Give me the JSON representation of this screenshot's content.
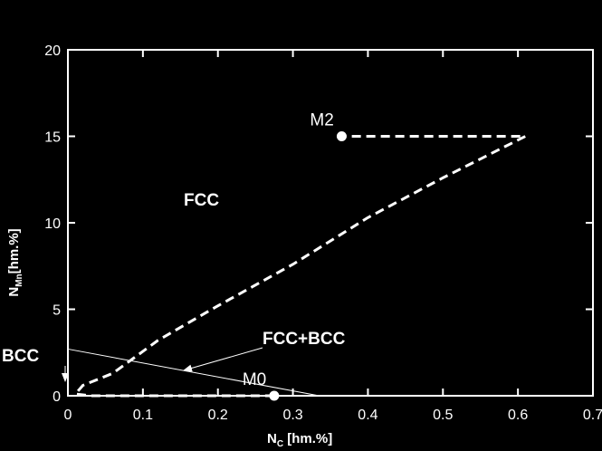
{
  "chart_data": {
    "type": "line",
    "xlabel_main": "N",
    "xlabel_sub": "C",
    "xlabel_unit": " [hm.%]",
    "ylabel_main": "N",
    "ylabel_sub": "Mn",
    "ylabel_unit": "[hm.%]",
    "xlim": [
      0,
      0.7
    ],
    "ylim": [
      0,
      20
    ],
    "xticks": [
      0,
      0.1,
      0.2,
      0.3,
      0.4,
      0.5,
      0.6,
      0.7
    ],
    "xtick_labels": [
      "0",
      "0.1",
      "0.2",
      "0.3",
      "0.4",
      "0.5",
      "0.6",
      "0.7"
    ],
    "yticks": [
      0,
      5,
      10,
      15,
      20
    ],
    "ytick_labels": [
      "0",
      "5",
      "10",
      "15",
      "20"
    ],
    "series": [
      {
        "style": "dashed",
        "color": "#ffffff",
        "x": [
          0.275,
          0.22,
          0.1,
          0.03,
          0.01,
          0.02,
          0.06,
          0.12,
          0.2,
          0.3,
          0.4,
          0.5,
          0.61,
          0.365
        ],
        "y": [
          0.0,
          0.0,
          0.0,
          0.0,
          0.1,
          0.6,
          1.3,
          3.2,
          5.2,
          7.6,
          10.3,
          12.6,
          15.0,
          15.0
        ]
      }
    ],
    "phase_boundary": {
      "x": [
        0.0,
        0.335
      ],
      "y": [
        2.7,
        0.0
      ]
    },
    "points": [
      {
        "name": "M0",
        "x": 0.275,
        "y": 0.0
      },
      {
        "name": "M2",
        "x": 0.365,
        "y": 15.0
      }
    ],
    "annotations": {
      "fcc": "FCC",
      "fcc_bcc": "FCC+BCC",
      "bcc": "BCC"
    }
  }
}
